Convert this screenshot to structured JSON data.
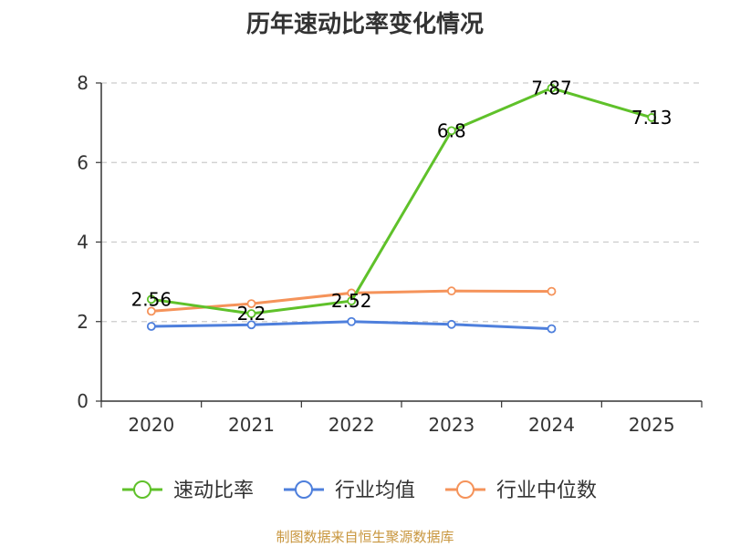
{
  "chart_data": {
    "type": "line",
    "title": "历年速动比率变化情况",
    "categories": [
      "2020",
      "2021",
      "2022",
      "2023",
      "2024",
      "2025"
    ],
    "ylim": [
      0,
      8
    ],
    "yticks": [
      0,
      2,
      4,
      6,
      8
    ],
    "grid": true,
    "legend_position": "bottom",
    "series": [
      {
        "name": "速动比率",
        "color": "#5fc12a",
        "values": [
          2.56,
          2.2,
          2.52,
          6.8,
          7.87,
          7.13
        ],
        "labels": [
          "2.56",
          "2.2",
          "2.52",
          "6.8",
          "7.87",
          "7.13"
        ]
      },
      {
        "name": "行业均值",
        "color": "#4e7fdc",
        "values": [
          1.88,
          1.92,
          2.0,
          1.93,
          1.82,
          null
        ]
      },
      {
        "name": "行业中位数",
        "color": "#f5935a",
        "values": [
          2.26,
          2.45,
          2.72,
          2.77,
          2.76,
          null
        ]
      }
    ]
  },
  "source_note": "制图数据来自恒生聚源数据库"
}
